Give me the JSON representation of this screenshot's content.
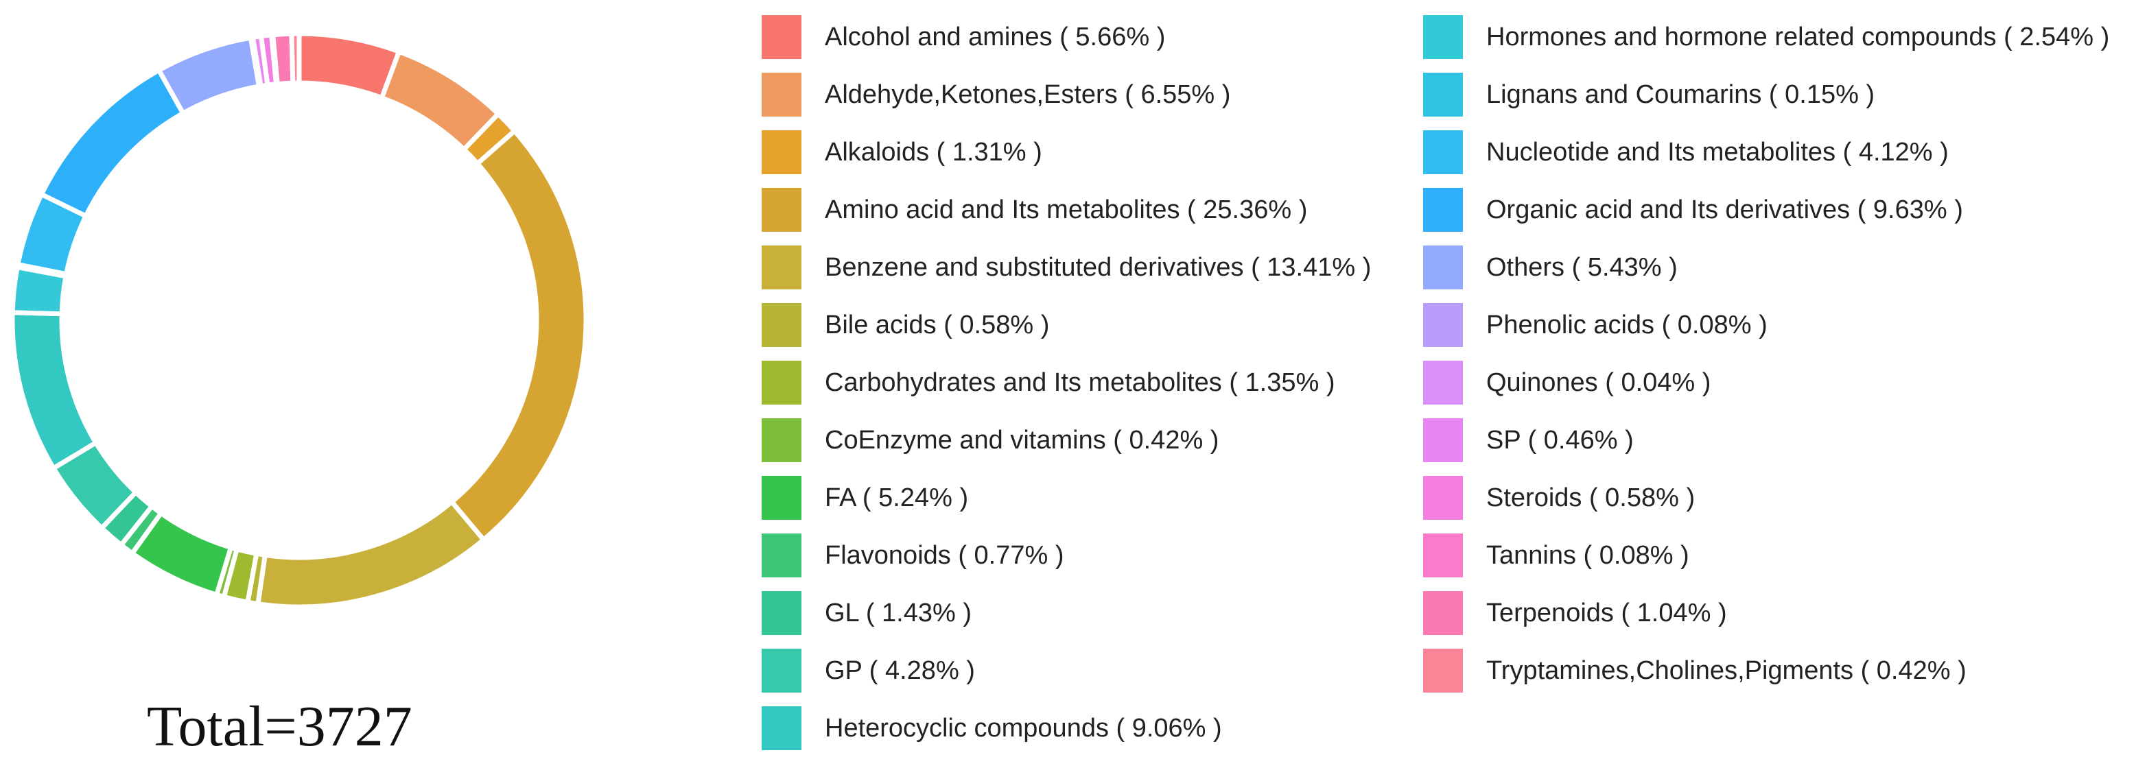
{
  "chart_data": {
    "type": "pie",
    "subtype": "donut",
    "total_label": "Total=3727",
    "slices": [
      {
        "label": "Alcohol and amines",
        "value": 5.66,
        "color": "#F8766D"
      },
      {
        "label": "Aldehyde,Ketones,Esters",
        "value": 6.55,
        "color": "#EE9A60"
      },
      {
        "label": "Alkaloids",
        "value": 1.31,
        "color": "#E5A32E"
      },
      {
        "label": "Amino acid and Its metabolites",
        "value": 25.36,
        "color": "#D6A431"
      },
      {
        "label": "Benzene and substituted derivatives",
        "value": 13.41,
        "color": "#C8B03A"
      },
      {
        "label": "Bile acids",
        "value": 0.58,
        "color": "#B5B434"
      },
      {
        "label": "Carbohydrates and Its metabolites",
        "value": 1.35,
        "color": "#9EBA2E"
      },
      {
        "label": "CoEnzyme and vitamins",
        "value": 0.42,
        "color": "#7DBE3A"
      },
      {
        "label": "FA",
        "value": 5.24,
        "color": "#35C44C"
      },
      {
        "label": "Flavonoids",
        "value": 0.77,
        "color": "#3CC675"
      },
      {
        "label": "GL",
        "value": 1.43,
        "color": "#33C592"
      },
      {
        "label": "GP",
        "value": 4.28,
        "color": "#36C9AC"
      },
      {
        "label": "Heterocyclic compounds",
        "value": 9.06,
        "color": "#33C9C2"
      },
      {
        "label": "Hormones and hormone related compounds",
        "value": 2.54,
        "color": "#35C9D8"
      },
      {
        "label": "Lignans and Coumarins",
        "value": 0.15,
        "color": "#2FC3E2"
      },
      {
        "label": "Nucleotide and Its metabolites",
        "value": 4.12,
        "color": "#33BCF1"
      },
      {
        "label": "Organic acid and Its derivatives",
        "value": 9.63,
        "color": "#2EAFF9"
      },
      {
        "label": "Others",
        "value": 5.43,
        "color": "#93AAFF"
      },
      {
        "label": "Phenolic acids",
        "value": 0.08,
        "color": "#B99DFB"
      },
      {
        "label": "Quinones",
        "value": 0.04,
        "color": "#D88FF7"
      },
      {
        "label": "SP",
        "value": 0.46,
        "color": "#E885F0"
      },
      {
        "label": "Steroids",
        "value": 0.58,
        "color": "#F47EDF"
      },
      {
        "label": "Tannins",
        "value": 0.08,
        "color": "#FC7ACA"
      },
      {
        "label": "Terpenoids",
        "value": 1.04,
        "color": "#FB7AB2"
      },
      {
        "label": "Tryptamines,Cholines,Pigments",
        "value": 0.42,
        "color": "#FB8496"
      }
    ],
    "legend": [
      "Alcohol and amines ( 5.66% )",
      "Aldehyde,Ketones,Esters ( 6.55% )",
      "Alkaloids ( 1.31% )",
      "Amino acid and Its metabolites ( 25.36% )",
      "Benzene and substituted derivatives ( 13.41% )",
      "Bile acids ( 0.58% )",
      "Carbohydrates and Its metabolites ( 1.35% )",
      "CoEnzyme and vitamins ( 0.42% )",
      "FA ( 5.24% )",
      "Flavonoids ( 0.77% )",
      "GL ( 1.43% )",
      "GP ( 4.28% )",
      "Heterocyclic compounds ( 9.06% )",
      "Hormones and hormone related compounds ( 2.54% )",
      "Lignans and Coumarins ( 0.15% )",
      "Nucleotide and Its metabolites ( 4.12% )",
      "Organic acid and Its derivatives ( 9.63% )",
      "Others ( 5.43% )",
      "Phenolic acids ( 0.08% )",
      "Quinones ( 0.04% )",
      "SP ( 0.46% )",
      "Steroids ( 0.58% )",
      "Tannins ( 0.08% )",
      "Terpenoids ( 1.04% )",
      "Tryptamines,Cholines,Pigments ( 0.42% )"
    ],
    "legend_placement": "right",
    "grid": false
  }
}
